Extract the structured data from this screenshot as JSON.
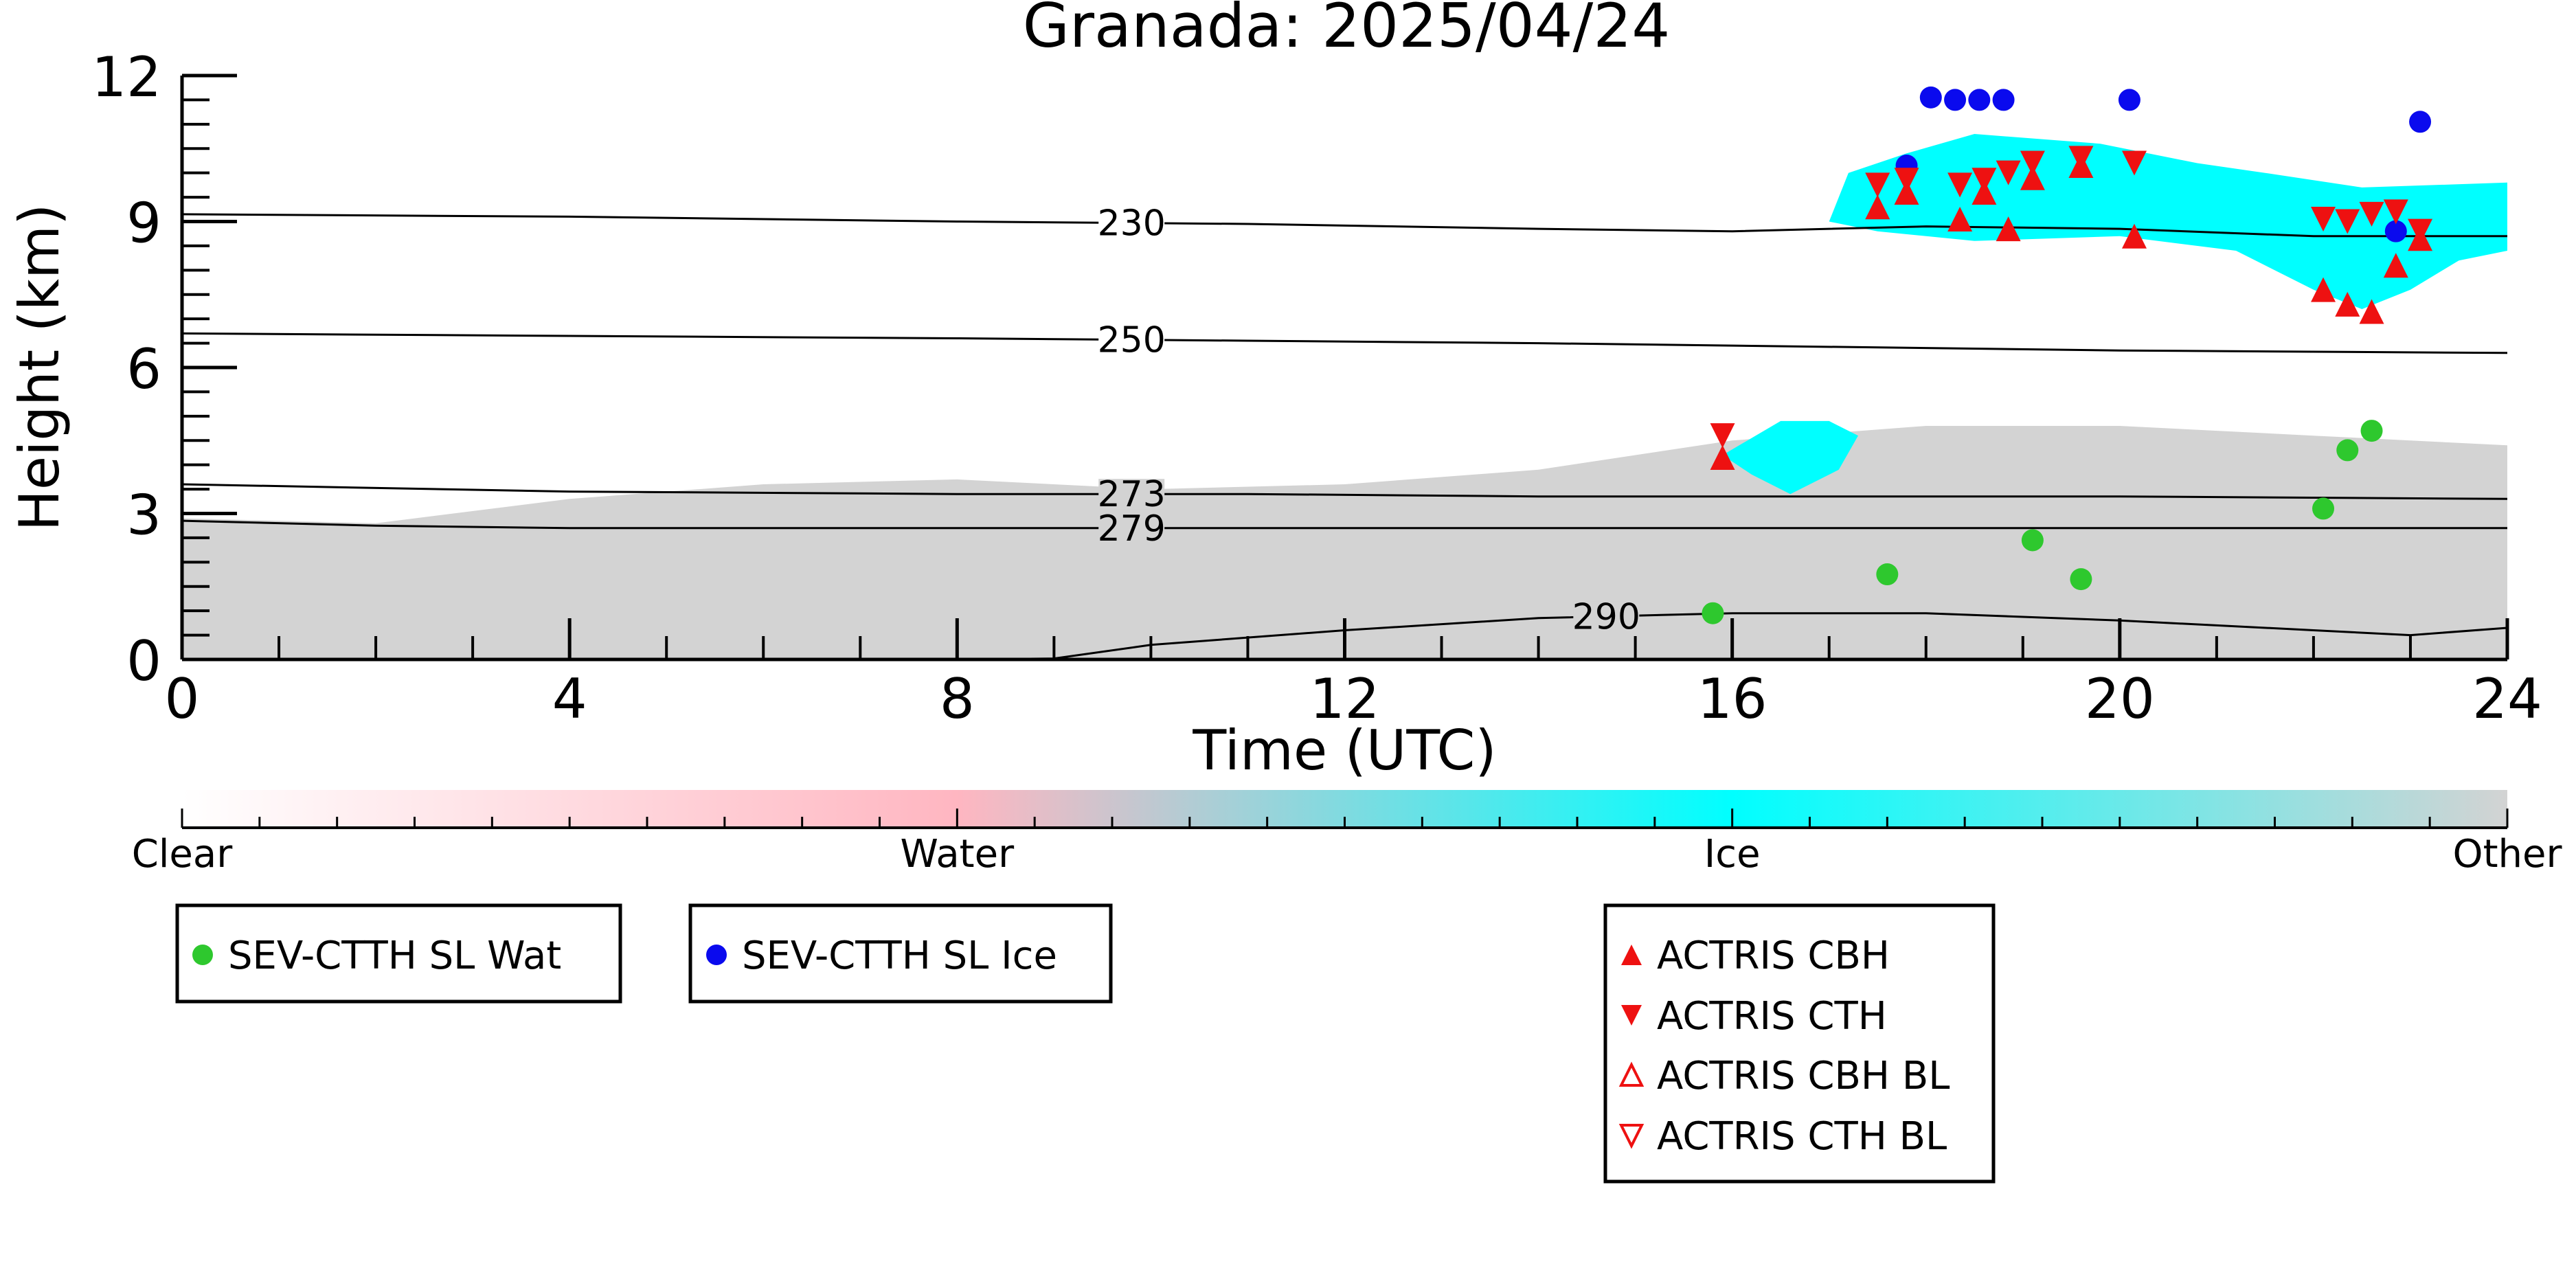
{
  "chart_data": {
    "type": "scatter",
    "title": "Granada: 2025/04/24",
    "xlabel": "Time (UTC)",
    "ylabel": "Height (km)",
    "xlim": [
      0,
      24
    ],
    "ylim": [
      0,
      12
    ],
    "x_ticks": [
      "0",
      "4",
      "8",
      "12",
      "16",
      "20",
      "24"
    ],
    "y_ticks": [
      "0",
      "3",
      "6",
      "9",
      "12"
    ],
    "colorbar": {
      "labels": [
        "Clear",
        "Water",
        "Ice",
        "Other"
      ],
      "colors": [
        "#ffffff",
        "#ffb6c1",
        "#00ffff",
        "#d3d3d3"
      ]
    },
    "classification_regions": [
      {
        "class": "Other",
        "color": "#d3d3d3",
        "outline": [
          [
            0,
            0
          ],
          [
            0,
            2.9
          ],
          [
            2,
            2.8
          ],
          [
            4,
            3.3
          ],
          [
            6,
            3.6
          ],
          [
            8,
            3.7
          ],
          [
            10,
            3.5
          ],
          [
            12,
            3.6
          ],
          [
            14,
            3.9
          ],
          [
            16,
            4.5
          ],
          [
            18,
            4.8
          ],
          [
            20,
            4.8
          ],
          [
            22,
            4.6
          ],
          [
            24,
            4.4
          ],
          [
            24,
            0
          ]
        ]
      },
      {
        "class": "Ice",
        "color": "#00ffff",
        "outline": [
          [
            17,
            9.0
          ],
          [
            17.2,
            10.0
          ],
          [
            17.8,
            10.4
          ],
          [
            18.5,
            10.8
          ],
          [
            19.8,
            10.6
          ],
          [
            20.8,
            10.2
          ],
          [
            21.5,
            10.0
          ],
          [
            22.5,
            9.7
          ],
          [
            24,
            9.8
          ],
          [
            24,
            8.4
          ],
          [
            23.5,
            8.2
          ],
          [
            23,
            7.6
          ],
          [
            22.5,
            7.2
          ],
          [
            22,
            7.6
          ],
          [
            21.2,
            8.4
          ],
          [
            20,
            8.7
          ],
          [
            18.5,
            8.6
          ],
          [
            17.5,
            8.8
          ]
        ]
      },
      {
        "class": "Ice",
        "color": "#00ffff",
        "outline": [
          [
            15.9,
            4.2
          ],
          [
            16.5,
            4.9
          ],
          [
            17.0,
            4.9
          ],
          [
            17.3,
            4.6
          ],
          [
            17.1,
            3.9
          ],
          [
            16.6,
            3.4
          ],
          [
            16.2,
            3.8
          ]
        ]
      }
    ],
    "contours": [
      {
        "label": "230",
        "points": [
          [
            0,
            9.15
          ],
          [
            4,
            9.1
          ],
          [
            8,
            9.0
          ],
          [
            11,
            8.95
          ],
          [
            14,
            8.85
          ],
          [
            16,
            8.8
          ],
          [
            18,
            8.9
          ],
          [
            20,
            8.85
          ],
          [
            22,
            8.7
          ],
          [
            24,
            8.7
          ]
        ]
      },
      {
        "label": "250",
        "points": [
          [
            0,
            6.7
          ],
          [
            4,
            6.65
          ],
          [
            8,
            6.6
          ],
          [
            11,
            6.55
          ],
          [
            14,
            6.5
          ],
          [
            16,
            6.45
          ],
          [
            20,
            6.35
          ],
          [
            24,
            6.3
          ]
        ]
      },
      {
        "label": "273",
        "points": [
          [
            0,
            3.6
          ],
          [
            4,
            3.45
          ],
          [
            8,
            3.4
          ],
          [
            11,
            3.4
          ],
          [
            14,
            3.35
          ],
          [
            16,
            3.35
          ],
          [
            20,
            3.35
          ],
          [
            24,
            3.3
          ]
        ]
      },
      {
        "label": "279",
        "points": [
          [
            0,
            2.85
          ],
          [
            2,
            2.75
          ],
          [
            4,
            2.7
          ],
          [
            8,
            2.7
          ],
          [
            11,
            2.7
          ],
          [
            14,
            2.7
          ],
          [
            16,
            2.7
          ],
          [
            20,
            2.7
          ],
          [
            24,
            2.7
          ]
        ]
      },
      {
        "label": "290",
        "points": [
          [
            8,
            0.0
          ],
          [
            9,
            0.02
          ],
          [
            10,
            0.3
          ],
          [
            12,
            0.6
          ],
          [
            14,
            0.85
          ],
          [
            16,
            0.95
          ],
          [
            18,
            0.95
          ],
          [
            20,
            0.8
          ],
          [
            22,
            0.6
          ],
          [
            23,
            0.5
          ],
          [
            24,
            0.65
          ]
        ]
      }
    ],
    "series": [
      {
        "name": "SEV-CTTH SL Wat",
        "marker": "circle",
        "color": "#2ec82e",
        "points": [
          [
            15.8,
            0.95
          ],
          [
            17.6,
            1.75
          ],
          [
            19.1,
            2.45
          ],
          [
            19.6,
            1.65
          ],
          [
            22.1,
            3.1
          ],
          [
            22.35,
            4.3
          ],
          [
            22.6,
            4.7
          ]
        ]
      },
      {
        "name": "SEV-CTTH SL Ice",
        "marker": "circle",
        "color": "#0a0aee",
        "points": [
          [
            17.8,
            10.15
          ],
          [
            18.05,
            11.55
          ],
          [
            18.3,
            11.5
          ],
          [
            18.55,
            11.5
          ],
          [
            18.8,
            11.5
          ],
          [
            20.1,
            11.5
          ],
          [
            22.85,
            8.8
          ],
          [
            23.1,
            11.05
          ]
        ]
      },
      {
        "name": "ACTRIS CBH",
        "marker": "triangle-up",
        "color": "#ee1111",
        "points": [
          [
            15.9,
            4.15
          ],
          [
            17.5,
            9.3
          ],
          [
            17.8,
            9.6
          ],
          [
            18.35,
            9.05
          ],
          [
            18.6,
            9.6
          ],
          [
            18.85,
            8.85
          ],
          [
            19.1,
            9.9
          ],
          [
            19.6,
            10.15
          ],
          [
            20.15,
            8.7
          ],
          [
            22.1,
            7.6
          ],
          [
            22.35,
            7.3
          ],
          [
            22.6,
            7.15
          ],
          [
            22.85,
            8.1
          ],
          [
            23.1,
            8.65
          ]
        ]
      },
      {
        "name": "ACTRIS CTH",
        "marker": "triangle-down",
        "color": "#ee1111",
        "points": [
          [
            15.9,
            4.6
          ],
          [
            17.5,
            9.75
          ],
          [
            17.8,
            9.85
          ],
          [
            18.35,
            9.75
          ],
          [
            18.6,
            9.85
          ],
          [
            18.85,
            10.0
          ],
          [
            19.1,
            10.2
          ],
          [
            19.6,
            10.3
          ],
          [
            20.15,
            10.2
          ],
          [
            22.1,
            9.05
          ],
          [
            22.35,
            9.0
          ],
          [
            22.6,
            9.15
          ],
          [
            22.85,
            9.2
          ],
          [
            23.1,
            8.8
          ]
        ]
      },
      {
        "name": "ACTRIS CBH BL",
        "marker": "triangle-up-open",
        "color": "#ee1111",
        "points": []
      },
      {
        "name": "ACTRIS CTH BL",
        "marker": "triangle-down-open",
        "color": "#ee1111",
        "points": []
      }
    ],
    "legend_position": "bottom"
  }
}
